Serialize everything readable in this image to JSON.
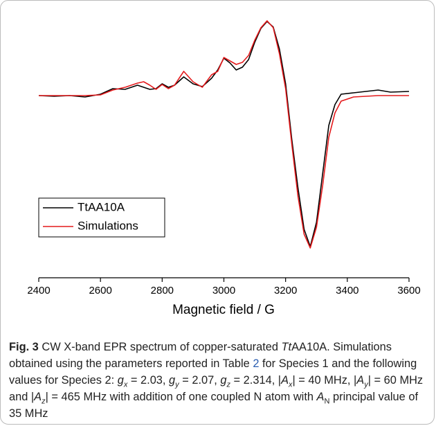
{
  "chart_data": {
    "type": "line",
    "xlabel": "Magnetic field / G",
    "xlim": [
      2400,
      3600
    ],
    "xticks": [
      2400,
      2600,
      2800,
      3000,
      3200,
      3400,
      3600
    ],
    "ylim": [
      -2.63,
      1.17
    ],
    "legend": "center-left",
    "x": [
      2400,
      2450,
      2500,
      2550,
      2600,
      2640,
      2680,
      2720,
      2740,
      2760,
      2780,
      2800,
      2820,
      2840,
      2870,
      2900,
      2930,
      2960,
      2980,
      3000,
      3020,
      3040,
      3060,
      3080,
      3100,
      3120,
      3140,
      3160,
      3180,
      3200,
      3220,
      3240,
      3260,
      3280,
      3300,
      3320,
      3340,
      3360,
      3380,
      3420,
      3460,
      3500,
      3540,
      3600
    ],
    "series": [
      {
        "name": "TtAA10A",
        "color": "#000000",
        "values": [
          0,
          -0.01,
          0,
          -0.02,
          0.02,
          0.1,
          0.09,
          0.15,
          0.12,
          0.09,
          0.1,
          0.17,
          0.12,
          0.15,
          0.27,
          0.17,
          0.13,
          0.25,
          0.37,
          0.54,
          0.47,
          0.37,
          0.41,
          0.52,
          0.77,
          0.97,
          1.07,
          0.99,
          0.67,
          0.17,
          -0.63,
          -1.33,
          -1.93,
          -2.18,
          -1.83,
          -1.13,
          -0.43,
          -0.13,
          0.02,
          0.04,
          0.06,
          0.08,
          0.05,
          0.06
        ]
      },
      {
        "name": "Simulations",
        "color": "#e41a1c",
        "values": [
          0,
          0,
          0,
          0,
          0.01,
          0.08,
          0.12,
          0.18,
          0.2,
          0.15,
          0.09,
          0.16,
          0.1,
          0.15,
          0.35,
          0.2,
          0.12,
          0.3,
          0.35,
          0.55,
          0.5,
          0.45,
          0.48,
          0.58,
          0.8,
          0.98,
          1.08,
          0.98,
          0.6,
          0.1,
          -0.7,
          -1.45,
          -2.0,
          -2.2,
          -1.9,
          -1.3,
          -0.6,
          -0.25,
          -0.08,
          -0.02,
          -0.01,
          0,
          0,
          0
        ]
      }
    ]
  },
  "caption": {
    "runs": [
      {
        "text": "Fig. 3",
        "bold": true
      },
      {
        "text": "  CW X-band EPR spectrum of copper-saturated "
      },
      {
        "text": "Tt",
        "italic": true
      },
      {
        "text": "AA10A. Simulations obtained using the parameters reported in Table "
      },
      {
        "text": "2",
        "link": true
      },
      {
        "text": " for Species 1 and the following values for Species 2: "
      },
      {
        "text": "g",
        "italic": true
      },
      {
        "text": "x",
        "sub": true,
        "italic": true
      },
      {
        "text": " = 2.03, "
      },
      {
        "text": "g",
        "italic": true
      },
      {
        "text": "y",
        "sub": true,
        "italic": true
      },
      {
        "text": " = 2.07, "
      },
      {
        "text": "g",
        "italic": true
      },
      {
        "text": "z",
        "sub": true,
        "italic": true
      },
      {
        "text": " = 2.314, |"
      },
      {
        "text": "A",
        "italic": true
      },
      {
        "text": "x",
        "sub": true,
        "italic": true
      },
      {
        "text": "| = 40 MHz, |"
      },
      {
        "text": "A",
        "italic": true
      },
      {
        "text": "y",
        "sub": true,
        "italic": true
      },
      {
        "text": "| = 60 MHz and |"
      },
      {
        "text": "A",
        "italic": true
      },
      {
        "text": "z",
        "sub": true,
        "italic": true
      },
      {
        "text": "| = 465 MHz with addition of one coupled N atom with "
      },
      {
        "text": "A",
        "italic": true
      },
      {
        "text": "N",
        "sub": true
      },
      {
        "text": " principal value of 35 MHz"
      }
    ]
  }
}
